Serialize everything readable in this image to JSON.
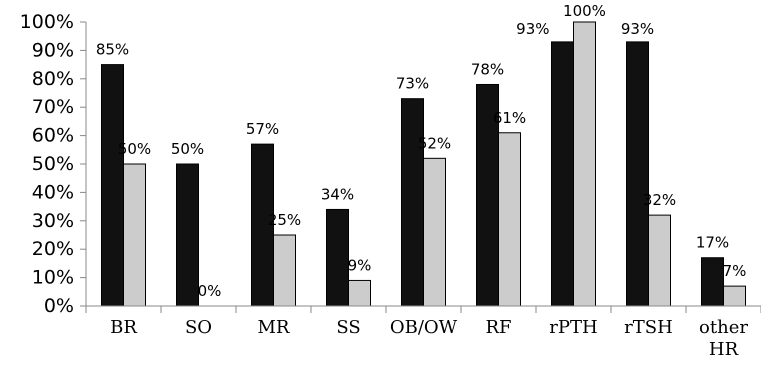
{
  "chart_data": {
    "type": "bar",
    "categories": [
      "BR",
      "SO",
      "MR",
      "SS",
      "OB/OW",
      "RF",
      "rPTH",
      "rTSH",
      "other HR"
    ],
    "series": [
      {
        "values": [
          85,
          50,
          57,
          34,
          73,
          78,
          93,
          93,
          17
        ],
        "color": "#111111"
      },
      {
        "values": [
          50,
          0,
          25,
          9,
          52,
          61,
          100,
          32,
          7
        ],
        "color": "#cccccc"
      }
    ],
    "data_labels": [
      {
        "category": "BR",
        "series": 0,
        "text": "85%"
      },
      {
        "category": "BR",
        "series": 1,
        "text": "50%"
      },
      {
        "category": "SO",
        "series": 0,
        "text": "50%"
      },
      {
        "category": "SO",
        "series": 1,
        "text": "0%"
      },
      {
        "category": "MR",
        "series": 0,
        "text": "57%"
      },
      {
        "category": "MR",
        "series": 1,
        "text": "25%"
      },
      {
        "category": "SS",
        "series": 0,
        "text": "34%"
      },
      {
        "category": "SS",
        "series": 1,
        "text": "9%"
      },
      {
        "category": "OB/OW",
        "series": 0,
        "text": "73%"
      },
      {
        "category": "OB/OW",
        "series": 1,
        "text": "52%"
      },
      {
        "category": "RF",
        "series": 0,
        "text": "78%"
      },
      {
        "category": "RF",
        "series": 1,
        "text": "61%"
      },
      {
        "category": "rPTH",
        "series": 0,
        "text": "93%"
      },
      {
        "category": "rPTH",
        "series": 1,
        "text": "100%"
      },
      {
        "category": "rTSH",
        "series": 0,
        "text": "93%"
      },
      {
        "category": "rTSH",
        "series": 1,
        "text": "32%"
      },
      {
        "category": "other HR",
        "series": 0,
        "text": "17%"
      },
      {
        "category": "other HR",
        "series": 1,
        "text": "7%"
      }
    ],
    "y_ticks": [
      "0%",
      "10%",
      "20%",
      "30%",
      "40%",
      "50%",
      "60%",
      "70%",
      "80%",
      "90%",
      "100%"
    ],
    "ylim": [
      0,
      100
    ],
    "title": "",
    "xlabel": "",
    "ylabel": "",
    "legend": "none",
    "grid": false
  }
}
